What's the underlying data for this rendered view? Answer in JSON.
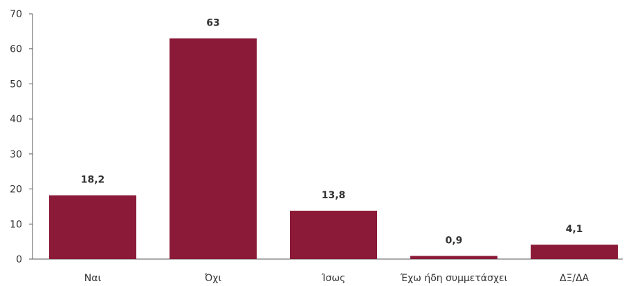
{
  "chart_data": {
    "type": "bar",
    "categories": [
      "Ναι",
      "Όχι",
      "Ίσως",
      "Έχω ήδη συμμετάσχει",
      "ΔΞ/ΔΑ"
    ],
    "values": [
      18.2,
      63,
      13.8,
      0.9,
      4.1
    ],
    "value_labels": [
      "18,2",
      "63",
      "13,8",
      "0,9",
      "4,1"
    ],
    "yticks": [
      0,
      10,
      20,
      30,
      40,
      50,
      60,
      70
    ],
    "ylim": [
      0,
      70
    ],
    "grid": false,
    "bar_color": "#8B1A38"
  }
}
